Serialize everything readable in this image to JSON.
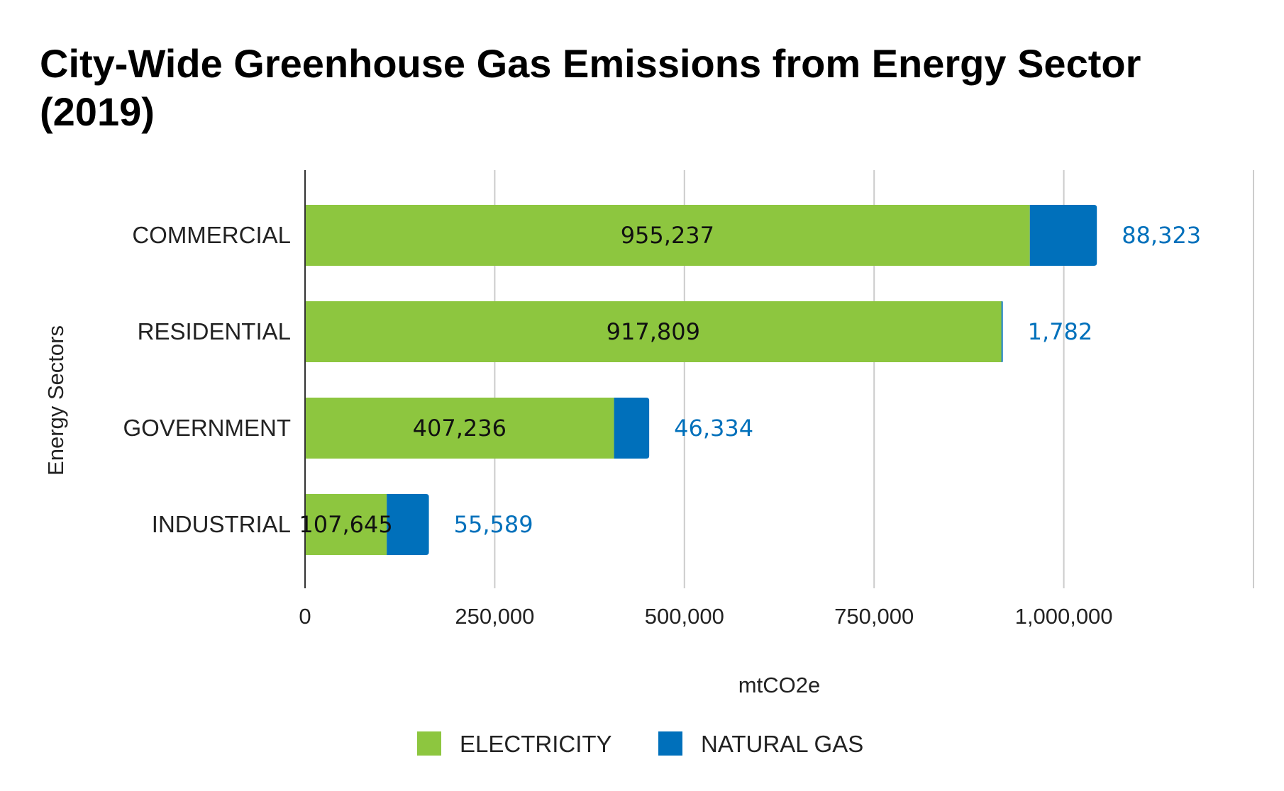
{
  "chart_data": {
    "type": "bar",
    "orientation": "horizontal",
    "stacked": true,
    "title": "City-Wide Greenhouse Gas Emissions from Energy Sector (2019)",
    "xlabel": "mtCO2e",
    "ylabel": "Energy Sectors",
    "categories": [
      "COMMERCIAL",
      "RESIDENTIAL",
      "GOVERNMENT",
      "INDUSTRIAL"
    ],
    "series": [
      {
        "name": "ELECTRICITY",
        "color": "#8dc63f",
        "values": [
          955237,
          917809,
          407236,
          107645
        ],
        "labels": [
          "955,237",
          "917,809",
          "407,236",
          "107,645"
        ]
      },
      {
        "name": "NATURAL GAS",
        "color": "#0070bb",
        "values": [
          88323,
          1782,
          46334,
          55589
        ],
        "labels": [
          "88,323",
          "1,782",
          "46,334",
          "55,589"
        ]
      }
    ],
    "xlim": [
      0,
      1250000
    ],
    "xticks": [
      0,
      250000,
      500000,
      750000,
      1000000
    ],
    "xtick_labels": [
      "0",
      "250,000",
      "500,000",
      "750,000",
      "1,000,000"
    ],
    "grid": true,
    "legend_position": "bottom"
  }
}
